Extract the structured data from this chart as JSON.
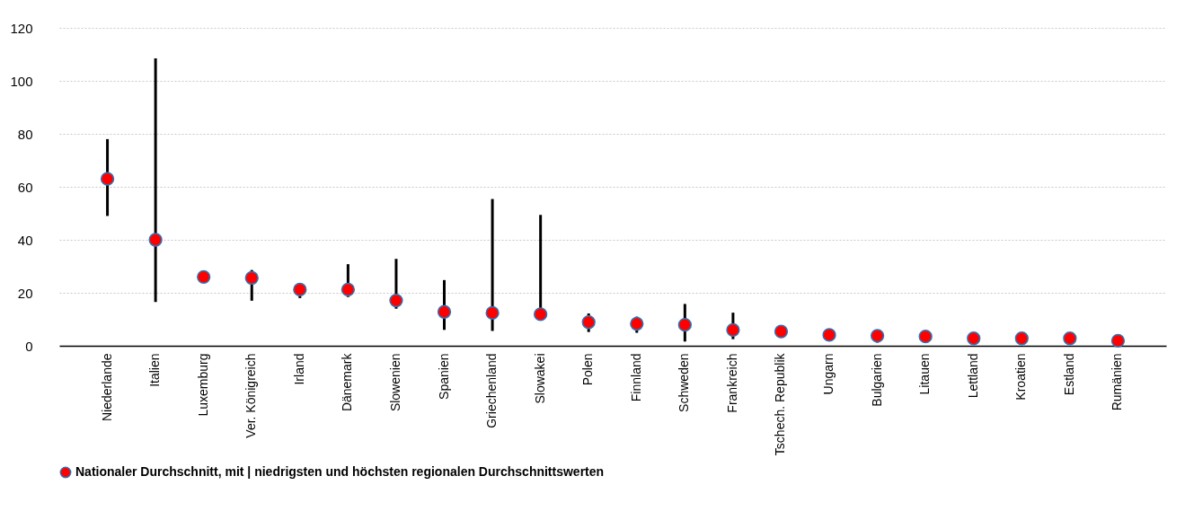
{
  "chart_data": {
    "type": "scatter",
    "categories": [
      "Niederlande",
      "Italien",
      "Luxemburg",
      "Ver. Königreich",
      "Irland",
      "Dänemark",
      "Slowenien",
      "Spanien",
      "Griechenland",
      "Slowakei",
      "Polen",
      "Finnland",
      "Schweden",
      "Frankreich",
      "Tschech. Republik",
      "Ungarn",
      "Bulgarien",
      "Litauen",
      "Lettland",
      "Kroatien",
      "Estland",
      "Rumänien"
    ],
    "series": [
      {
        "name": "Nationaler Durchschnitt, mit | niedrigsten und höchsten regionalen Durchschnittswerten",
        "color": "#ff0000",
        "values": [
          63,
          40,
          26,
          25.6,
          21.2,
          21.2,
          17.1,
          12.8,
          12.4,
          11.9,
          8.9,
          8.3,
          7.9,
          6,
          5.4,
          4.1,
          3.8,
          3.5,
          2.8,
          2.8,
          2.8,
          1.9
        ],
        "errors": [
          [
            49,
            78
          ],
          [
            16.5,
            108.5
          ],
          null,
          [
            17,
            28.6
          ],
          [
            18,
            22
          ],
          [
            18.4,
            30.8
          ],
          [
            14,
            32.8
          ],
          [
            6,
            24.8
          ],
          [
            5.6,
            55.4
          ],
          [
            11.9,
            49.4
          ],
          [
            5.2,
            12.2
          ],
          [
            4.9,
            11
          ],
          [
            1.6,
            15.8
          ],
          [
            2.5,
            12.5
          ],
          null,
          null,
          [
            1.2,
            4
          ],
          null,
          null,
          null,
          null,
          null
        ]
      }
    ],
    "ylim": [
      0,
      120
    ],
    "yticks": [
      0,
      20,
      40,
      60,
      80,
      100,
      120
    ],
    "grid": "y",
    "legend": "bottom",
    "marker": "circle"
  }
}
